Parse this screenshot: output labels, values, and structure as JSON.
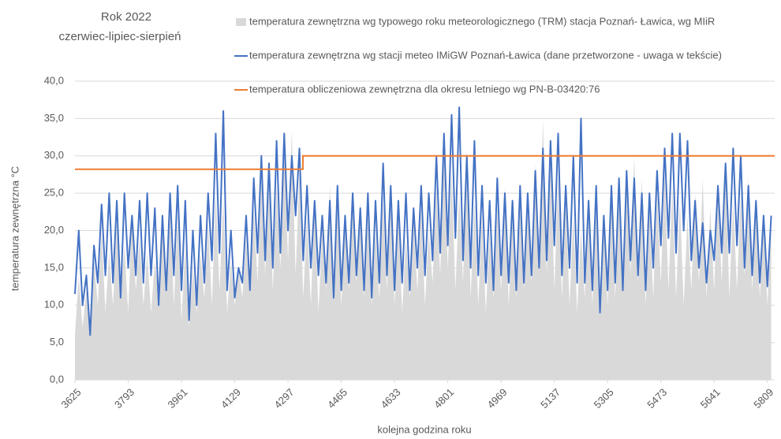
{
  "chart_data": {
    "type": "line",
    "title": "Rok 2022",
    "subtitle": "czerwiec-lipiec-sierpień",
    "x_label": "kolejna godzina roku",
    "y_label": "temperatura zewnętrzna °C",
    "xlim": [
      3625,
      5832
    ],
    "xticks": [
      3625,
      3793,
      3961,
      4129,
      4297,
      4465,
      4633,
      4801,
      4969,
      5137,
      5305,
      5473,
      5641,
      5809
    ],
    "ylim": [
      0,
      40
    ],
    "yticks": [
      {
        "value": 0,
        "label": "0,0"
      },
      {
        "value": 5,
        "label": "5,0"
      },
      {
        "value": 10,
        "label": "10,0"
      },
      {
        "value": 15,
        "label": "15,0"
      },
      {
        "value": 20,
        "label": "20,0"
      },
      {
        "value": 25,
        "label": "25,0"
      },
      {
        "value": 30,
        "label": "30,0"
      },
      {
        "value": 35,
        "label": "35,0"
      },
      {
        "value": 40,
        "label": "40,0"
      }
    ],
    "grid": true,
    "legend": "top-right",
    "x": [
      3625,
      3637,
      3649,
      3661,
      3673,
      3685,
      3697,
      3709,
      3721,
      3733,
      3745,
      3757,
      3769,
      3781,
      3793,
      3805,
      3817,
      3829,
      3841,
      3853,
      3865,
      3877,
      3889,
      3901,
      3913,
      3925,
      3937,
      3949,
      3961,
      3973,
      3985,
      3997,
      4009,
      4021,
      4033,
      4045,
      4057,
      4069,
      4081,
      4093,
      4105,
      4117,
      4129,
      4141,
      4153,
      4165,
      4177,
      4189,
      4201,
      4213,
      4225,
      4237,
      4249,
      4261,
      4273,
      4285,
      4297,
      4309,
      4321,
      4333,
      4345,
      4357,
      4369,
      4381,
      4393,
      4405,
      4417,
      4429,
      4441,
      4453,
      4465,
      4477,
      4489,
      4501,
      4513,
      4525,
      4537,
      4549,
      4561,
      4573,
      4585,
      4597,
      4609,
      4621,
      4633,
      4645,
      4657,
      4669,
      4681,
      4693,
      4705,
      4717,
      4729,
      4741,
      4753,
      4765,
      4777,
      4789,
      4801,
      4813,
      4825,
      4837,
      4849,
      4861,
      4873,
      4885,
      4897,
      4909,
      4921,
      4933,
      4945,
      4957,
      4969,
      4981,
      4993,
      5005,
      5017,
      5029,
      5041,
      5053,
      5065,
      5077,
      5089,
      5101,
      5113,
      5125,
      5137,
      5149,
      5161,
      5173,
      5185,
      5197,
      5209,
      5221,
      5233,
      5245,
      5257,
      5269,
      5281,
      5293,
      5305,
      5317,
      5329,
      5341,
      5353,
      5365,
      5377,
      5389,
      5401,
      5413,
      5425,
      5437,
      5449,
      5461,
      5473,
      5485,
      5497,
      5509,
      5521,
      5533,
      5545,
      5557,
      5569,
      5581,
      5593,
      5605,
      5617,
      5629,
      5641,
      5653,
      5665,
      5677,
      5689,
      5701,
      5713,
      5725,
      5737,
      5749,
      5761,
      5773,
      5785,
      5797,
      5809,
      5821
    ],
    "series": [
      {
        "name": "temperatura zewnętrzna wg typowego roku meteorologicznego (TRM) stacja Poznań- Ławica, wg MIiR",
        "kind": "area",
        "color": "#d9d9d9",
        "values": [
          6,
          14,
          7,
          12,
          8,
          16,
          10,
          20,
          9,
          17,
          10,
          21,
          11,
          18,
          9,
          22,
          12,
          19,
          10,
          17,
          9,
          16,
          11,
          20,
          12,
          24,
          10,
          22,
          8,
          18,
          7,
          15,
          9,
          17,
          11,
          21,
          10,
          25,
          12,
          24,
          9,
          16,
          10,
          15,
          11,
          19,
          12,
          23,
          13,
          27,
          14,
          29,
          12,
          26,
          15,
          31,
          16,
          33.5,
          14,
          28,
          11,
          22,
          10,
          24,
          9,
          20,
          12,
          26,
          11,
          23,
          10,
          21,
          12,
          25,
          13,
          24,
          11,
          22,
          10,
          20,
          11,
          24,
          12,
          27,
          10,
          22,
          9,
          19,
          11,
          21,
          12,
          23,
          10,
          20,
          13,
          26,
          14,
          30,
          15,
          28,
          12,
          25,
          13,
          31,
          11,
          24,
          10,
          22,
          9,
          20,
          11,
          23,
          12,
          26,
          10,
          22,
          11,
          24,
          12,
          25,
          13,
          29,
          15,
          35,
          14,
          31,
          12,
          27,
          11,
          24,
          10,
          22,
          9,
          20,
          11,
          25,
          10,
          23,
          9,
          21,
          10,
          24,
          11,
          26,
          12,
          28,
          14,
          30,
          13,
          27,
          10,
          23,
          11,
          25,
          13,
          28,
          12,
          26,
          11,
          24,
          10,
          22,
          12,
          25,
          13,
          27,
          11,
          23,
          12,
          26,
          13,
          28,
          11,
          24,
          12,
          25,
          14,
          27,
          12,
          24,
          11,
          22,
          10,
          20
        ]
      },
      {
        "name": "temperatura zewnętrzna wg stacji meteo IMiGW Poznań-Ławica (dane przetworzone - uwaga w tekście)",
        "kind": "line",
        "color": "#4472c4",
        "values": [
          11.5,
          20,
          10,
          14,
          6,
          18,
          13,
          23.5,
          14,
          25,
          13,
          24,
          11,
          25,
          15,
          22,
          14,
          24,
          13,
          25,
          14,
          23,
          10,
          22,
          12,
          25,
          14,
          26,
          12,
          24,
          8,
          20,
          10,
          22,
          13,
          25,
          16,
          33,
          17,
          36,
          12,
          20,
          11,
          15,
          13,
          22,
          12,
          27,
          17,
          30,
          16,
          29,
          15,
          32,
          17,
          33,
          20,
          30,
          22,
          31,
          16,
          26,
          15,
          24,
          14,
          22,
          13,
          24,
          11,
          26,
          12,
          22,
          13,
          25,
          14,
          23,
          12,
          25,
          11,
          24,
          13,
          29,
          14,
          26,
          12,
          24,
          13,
          25,
          12,
          23,
          15,
          26,
          14,
          25,
          16,
          30,
          17,
          33,
          18,
          35.5,
          19,
          36.5,
          16,
          30,
          15,
          32,
          14,
          26,
          13,
          24,
          12,
          27,
          14,
          25,
          13,
          24,
          12,
          26,
          13,
          25,
          14,
          28,
          15,
          31,
          16,
          32,
          18,
          33,
          14,
          26,
          15,
          30,
          13,
          35,
          13,
          24,
          12,
          26,
          9,
          22,
          12,
          26,
          13,
          27,
          12,
          28,
          16,
          27,
          14,
          25,
          12,
          25,
          15,
          28,
          18,
          31,
          19,
          33,
          17,
          33,
          20,
          32,
          16,
          24,
          15,
          21,
          13,
          20,
          16,
          26,
          17,
          29,
          17,
          31,
          18,
          30,
          15,
          26,
          14,
          24,
          13,
          22,
          12.5,
          22
        ]
      },
      {
        "name": "temperatura obliczeniowa zewnętrzna dla okresu letniego wg PN-B-03420:76",
        "kind": "line",
        "color": "#ed7d31",
        "x": [
          3625,
          4344,
          4344,
          5832
        ],
        "values": [
          28.2,
          28.2,
          30,
          30
        ]
      }
    ]
  }
}
